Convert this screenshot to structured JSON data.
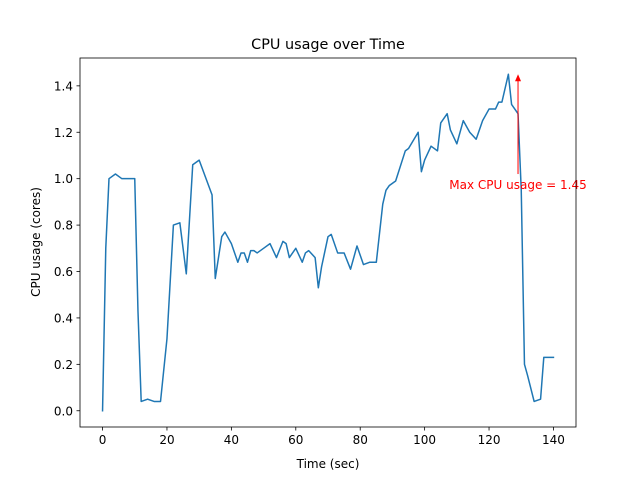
{
  "chart_data": {
    "type": "line",
    "title": "CPU usage over Time",
    "xlabel": "Time (sec)",
    "ylabel": "CPU usage (cores)",
    "xlim": [
      -7,
      147
    ],
    "ylim": [
      -0.07,
      1.52
    ],
    "xticks": [
      0,
      20,
      40,
      60,
      80,
      100,
      120,
      140
    ],
    "yticks": [
      0.0,
      0.2,
      0.4,
      0.6,
      0.8,
      1.0,
      1.2,
      1.4
    ],
    "ytick_labels": [
      "0.0",
      "0.2",
      "0.4",
      "0.6",
      "0.8",
      "1.0",
      "1.2",
      "1.4"
    ],
    "grid": false,
    "series": [
      {
        "color": "#1f77b4",
        "x": [
          0,
          1,
          2,
          4,
          6,
          8,
          10,
          11,
          12,
          14,
          16,
          18,
          20,
          22,
          24,
          26,
          28,
          30,
          34,
          35,
          36,
          37,
          38,
          40,
          42,
          43,
          44,
          45,
          46,
          47,
          48,
          50,
          52,
          54,
          56,
          57,
          58,
          60,
          62,
          63,
          64,
          66,
          67,
          68,
          70,
          71,
          73,
          75,
          77,
          79,
          80,
          81,
          83,
          85,
          87,
          88,
          89,
          91,
          94,
          95,
          98,
          99,
          100,
          102,
          104,
          105,
          107,
          108,
          110,
          112,
          114,
          116,
          118,
          120,
          122,
          123,
          124,
          126,
          127,
          128,
          129,
          130,
          131,
          132,
          134,
          136,
          137,
          138,
          139,
          140
        ],
        "y": [
          0.0,
          0.7,
          1.0,
          1.02,
          1.0,
          1.0,
          1.0,
          0.43,
          0.04,
          0.05,
          0.04,
          0.04,
          0.31,
          0.8,
          0.81,
          0.59,
          1.06,
          1.08,
          0.93,
          0.57,
          0.66,
          0.75,
          0.77,
          0.72,
          0.64,
          0.68,
          0.68,
          0.64,
          0.69,
          0.69,
          0.68,
          0.7,
          0.72,
          0.66,
          0.73,
          0.72,
          0.66,
          0.7,
          0.64,
          0.68,
          0.69,
          0.66,
          0.53,
          0.62,
          0.75,
          0.76,
          0.68,
          0.68,
          0.61,
          0.71,
          0.67,
          0.63,
          0.64,
          0.64,
          0.89,
          0.95,
          0.97,
          0.99,
          1.12,
          1.13,
          1.2,
          1.03,
          1.08,
          1.14,
          1.12,
          1.24,
          1.28,
          1.21,
          1.15,
          1.25,
          1.2,
          1.17,
          1.25,
          1.3,
          1.3,
          1.33,
          1.33,
          1.45,
          1.32,
          1.3,
          1.28,
          0.95,
          0.2,
          0.15,
          0.04,
          0.05,
          0.23,
          0.23,
          0.23,
          0.23
        ]
      }
    ],
    "annotation": {
      "text": "Max CPU usage = 1.45",
      "xy": [
        129,
        1.45
      ],
      "xytext": [
        129,
        1.02
      ],
      "color": "#ff0000"
    }
  }
}
